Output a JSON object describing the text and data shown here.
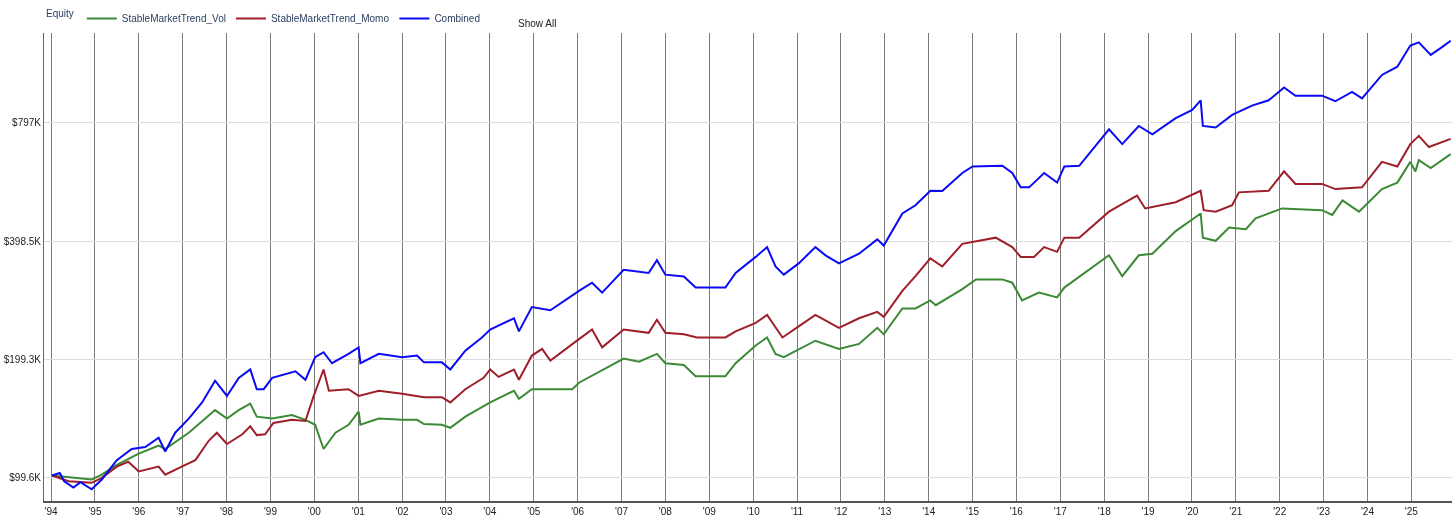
{
  "chart_data": {
    "type": "line",
    "legend_title": "Equity",
    "legend": "top left",
    "log": "y",
    "grid": true,
    "annotations": [
      "Show All"
    ],
    "xlim": [
      "1993-11-03",
      "2025-12-05"
    ],
    "xticks": [
      {
        "value": "1994-01-01",
        "label": "'94"
      },
      {
        "value": "1995-01-01",
        "label": "'95"
      },
      {
        "value": "1996-01-01",
        "label": "'96"
      },
      {
        "value": "1997-01-01",
        "label": "'97"
      },
      {
        "value": "1998-01-01",
        "label": "'98"
      },
      {
        "value": "1999-01-01",
        "label": "'99"
      },
      {
        "value": "2000-01-01",
        "label": "'00"
      },
      {
        "value": "2001-01-01",
        "label": "'01"
      },
      {
        "value": "2002-01-01",
        "label": "'02"
      },
      {
        "value": "2003-01-01",
        "label": "'03"
      },
      {
        "value": "2004-01-01",
        "label": "'04"
      },
      {
        "value": "2005-01-01",
        "label": "'05"
      },
      {
        "value": "2006-01-01",
        "label": "'06"
      },
      {
        "value": "2007-01-01",
        "label": "'07"
      },
      {
        "value": "2008-01-01",
        "label": "'08"
      },
      {
        "value": "2009-01-01",
        "label": "'09"
      },
      {
        "value": "2010-01-01",
        "label": "'10"
      },
      {
        "value": "2011-01-01",
        "label": "'11"
      },
      {
        "value": "2012-01-01",
        "label": "'12"
      },
      {
        "value": "2013-01-01",
        "label": "'13"
      },
      {
        "value": "2014-01-01",
        "label": "'14"
      },
      {
        "value": "2015-01-01",
        "label": "'15"
      },
      {
        "value": "2016-01-01",
        "label": "'16"
      },
      {
        "value": "2017-01-01",
        "label": "'17"
      },
      {
        "value": "2018-01-01",
        "label": "'18"
      },
      {
        "value": "2019-01-01",
        "label": "'19"
      },
      {
        "value": "2020-01-01",
        "label": "'20"
      },
      {
        "value": "2021-01-01",
        "label": "'21"
      },
      {
        "value": "2022-01-01",
        "label": "'22"
      },
      {
        "value": "2023-01-01",
        "label": "'23"
      },
      {
        "value": "2024-01-01",
        "label": "'24"
      },
      {
        "value": "2025-01-01",
        "label": "'25"
      }
    ],
    "ylim": [
      87000,
      1350000
    ],
    "yticks": [
      {
        "value": 99600,
        "label": "$99.6K"
      },
      {
        "value": 199300,
        "label": "$199.3K"
      },
      {
        "value": 398500,
        "label": "$398.5K"
      },
      {
        "value": 797000,
        "label": "$797K"
      }
    ],
    "series": [
      {
        "name": "StableMarketTrend_Vol",
        "color": "#3c8a35",
        "x": [
          "1994-01-08",
          "1994-12-05",
          "1995-02-27",
          "1995-07-02",
          "1996-01-01",
          "1996-06-14",
          "1996-08-08",
          "1997-02-20",
          "1997-09-27",
          "1998-01-04",
          "1998-04-12",
          "1998-07-17",
          "1998-09-09",
          "1999-01-15",
          "1999-06-29",
          "1999-10-19",
          "2000-01-08",
          "2000-03-18",
          "2000-06-25",
          "2000-10-12",
          "2001-01-04",
          "2001-01-19",
          "2001-06-21",
          "2002-01-01",
          "2002-05-05",
          "2002-07-02",
          "2002-11-28",
          "2003-02-06",
          "2003-06-11",
          "2004-01-04",
          "2004-07-20",
          "2004-08-30",
          "2004-12-16",
          "2005-11-17",
          "2006-01-12",
          "2007-01-19",
          "2007-05-27",
          "2007-10-23",
          "2008-01-01",
          "2008-06-03",
          "2008-09-09",
          "2009-05-15",
          "2009-08-08",
          "2010-01-22",
          "2010-04-27",
          "2010-07-06",
          "2010-09-13",
          "2011-06-03",
          "2011-12-16",
          "2012-05-31",
          "2012-10-30",
          "2012-12-23",
          "2013-05-27",
          "2013-09-13",
          "2014-01-15",
          "2014-03-01",
          "2014-10-08",
          "2015-01-30",
          "2015-09-06",
          "2015-11-28",
          "2016-02-17",
          "2016-07-06",
          "2016-12-05",
          "2017-02-03",
          "2018-02-10",
          "2018-05-31",
          "2018-10-16",
          "2019-02-06",
          "2019-08-19",
          "2020-03-14",
          "2020-04-01",
          "2020-07-17",
          "2020-11-06",
          "2021-03-25",
          "2021-06-14",
          "2022-01-22",
          "2022-12-19",
          "2023-03-14",
          "2023-06-07",
          "2023-10-23",
          "2024-05-01",
          "2024-09-06",
          "2024-12-23",
          "2025-02-03",
          "2025-03-04",
          "2025-06-11",
          "2025-11-24"
        ],
        "values": [
          101000,
          98700,
          101500,
          107500,
          114800,
          120300,
          118000,
          129800,
          148200,
          141000,
          148200,
          153900,
          142600,
          141000,
          144000,
          140000,
          136000,
          118000,
          129800,
          136000,
          146800,
          136000,
          141000,
          140000,
          140000,
          136600,
          136000,
          133600,
          142600,
          155000,
          166000,
          158300,
          167500,
          167500,
          174000,
          200500,
          196700,
          206000,
          195000,
          193000,
          180800,
          180800,
          195000,
          216400,
          226800,
          206000,
          202000,
          222500,
          212000,
          218400,
          240000,
          231000,
          268900,
          268900,
          281700,
          274000,
          301000,
          318700,
          318700,
          312600,
          281700,
          295000,
          286800,
          303800,
          367000,
          324700,
          367000,
          370500,
          423000,
          469000,
          407000,
          399600,
          431700,
          427600,
          456000,
          483000,
          478000,
          465000,
          506000,
          474000,
          541000,
          562000,
          634500,
          600000,
          641000,
          612000,
          664000
        ]
      },
      {
        "name": "StableMarketTrend_Momo",
        "color": "#9e1f2a",
        "x": [
          "1994-01-08",
          "1994-05-27",
          "1994-12-05",
          "1995-02-27",
          "1995-07-02",
          "1995-10-05",
          "1996-01-01",
          "1996-06-14",
          "1996-08-08",
          "1996-12-23",
          "1997-04-16",
          "1997-08-05",
          "1997-10-12",
          "1998-01-04",
          "1998-05-12",
          "1998-07-17",
          "1998-09-09",
          "1998-11-17",
          "1999-01-26",
          "1999-06-29",
          "1999-10-19",
          "1999-12-27",
          "2000-03-18",
          "2000-05-01",
          "2000-10-12",
          "2001-01-04",
          "2001-06-21",
          "2002-01-01",
          "2002-07-02",
          "2002-11-28",
          "2003-02-06",
          "2003-06-11",
          "2003-11-10",
          "2004-01-04",
          "2004-03-14",
          "2004-07-20",
          "2004-08-30",
          "2004-12-16",
          "2005-03-11",
          "2005-05-19",
          "2006-01-12",
          "2006-05-01",
          "2006-07-24",
          "2007-01-19",
          "2007-08-15",
          "2007-10-23",
          "2008-01-01",
          "2008-06-03",
          "2008-09-20",
          "2009-05-15",
          "2009-08-08",
          "2010-01-22",
          "2010-04-27",
          "2010-09-02",
          "2011-01-15",
          "2011-06-03",
          "2011-12-16",
          "2012-05-31",
          "2012-10-30",
          "2012-12-23",
          "2013-05-27",
          "2013-09-13",
          "2014-01-15",
          "2014-04-24",
          "2014-10-08",
          "2015-02-24",
          "2015-07-13",
          "2015-11-28",
          "2016-02-06",
          "2016-05-27",
          "2016-08-19",
          "2016-12-05",
          "2017-02-03",
          "2017-06-07",
          "2018-02-10",
          "2018-10-01",
          "2018-12-08",
          "2019-08-19",
          "2020-03-14",
          "2020-04-08",
          "2020-07-17",
          "2020-12-01",
          "2021-01-26",
          "2021-10-01",
          "2022-02-06",
          "2022-05-12",
          "2022-12-19",
          "2023-04-09",
          "2023-11-17",
          "2024-05-01",
          "2024-09-06",
          "2024-12-23",
          "2025-03-04",
          "2025-05-27",
          "2025-11-24"
        ],
        "values": [
          101000,
          97700,
          96800,
          99600,
          106400,
          109500,
          103400,
          106400,
          101500,
          106400,
          110500,
          123800,
          129800,
          121500,
          128600,
          134700,
          128000,
          128600,
          137400,
          140000,
          139000,
          161000,
          188000,
          166000,
          167500,
          161000,
          166000,
          163000,
          159800,
          159800,
          155000,
          167500,
          179000,
          188000,
          180000,
          188000,
          177000,
          204000,
          212000,
          198000,
          224600,
          237600,
          214000,
          237600,
          233000,
          251600,
          233000,
          231000,
          226800,
          226800,
          235000,
          247000,
          258800,
          226800,
          242000,
          258800,
          240000,
          253800,
          263500,
          256000,
          298000,
          324700,
          360600,
          343800,
          392600,
          399600,
          407000,
          385000,
          363600,
          363600,
          385000,
          374500,
          407000,
          407000,
          474000,
          521000,
          483000,
          501000,
          535600,
          478000,
          474000,
          492000,
          530700,
          535600,
          600000,
          557600,
          557600,
          541000,
          546500,
          634500,
          617500,
          704000,
          739000,
          692000,
          726000
        ]
      },
      {
        "name": "Combined",
        "color": "#0a0af5",
        "x": [
          "1994-01-08",
          "1994-03-14",
          "1994-04-20",
          "1994-07-06",
          "1994-09-02",
          "1994-12-05",
          "1995-02-27",
          "1995-07-02",
          "1995-11-03",
          "1996-02-24",
          "1996-06-14",
          "1996-08-08",
          "1996-10-30",
          "1997-02-20",
          "1997-06-11",
          "1997-09-27",
          "1998-01-04",
          "1998-04-12",
          "1998-07-17",
          "1998-09-09",
          "1998-11-06",
          "1999-01-15",
          "1999-07-28",
          "1999-10-19",
          "2000-01-08",
          "2000-03-18",
          "2000-05-27",
          "2000-10-12",
          "2001-01-04",
          "2001-01-19",
          "2001-06-21",
          "2002-01-01",
          "2002-05-05",
          "2002-07-02",
          "2002-11-28",
          "2003-02-06",
          "2003-06-11",
          "2003-10-27",
          "2004-01-04",
          "2004-07-20",
          "2004-08-30",
          "2004-12-16",
          "2005-05-19",
          "2006-01-12",
          "2006-05-01",
          "2006-07-24",
          "2007-01-19",
          "2007-08-15",
          "2007-10-23",
          "2008-01-01",
          "2008-06-03",
          "2008-09-09",
          "2009-05-15",
          "2009-08-08",
          "2010-01-22",
          "2010-04-27",
          "2010-07-06",
          "2010-09-13",
          "2011-01-15",
          "2011-06-03",
          "2011-08-26",
          "2011-12-16",
          "2012-05-31",
          "2012-10-30",
          "2012-12-23",
          "2013-05-27",
          "2013-09-13",
          "2014-01-15",
          "2014-04-24",
          "2014-10-08",
          "2015-01-01",
          "2015-09-06",
          "2015-11-28",
          "2016-02-06",
          "2016-04-16",
          "2016-08-19",
          "2016-12-05",
          "2017-02-03",
          "2017-06-07",
          "2018-02-10",
          "2018-05-31",
          "2018-10-16",
          "2019-02-06",
          "2019-08-19",
          "2020-01-04",
          "2020-03-14",
          "2020-04-01",
          "2020-07-17",
          "2020-12-01",
          "2021-05-15",
          "2021-10-01",
          "2022-02-06",
          "2022-05-12",
          "2022-12-19",
          "2023-04-09",
          "2023-08-26",
          "2023-11-17",
          "2024-05-01",
          "2024-09-06",
          "2024-12-23",
          "2025-03-04",
          "2025-06-11",
          "2025-09-16",
          "2025-11-24"
        ],
        "values": [
          101000,
          102500,
          97700,
          94100,
          97100,
          93200,
          98700,
          110500,
          118000,
          119400,
          126000,
          116300,
          129800,
          141000,
          155000,
          176000,
          161000,
          179000,
          188000,
          167500,
          167500,
          179000,
          186000,
          177000,
          202000,
          208000,
          195000,
          206000,
          214000,
          195000,
          206000,
          202000,
          204000,
          196000,
          196000,
          188000,
          210000,
          226800,
          237600,
          253800,
          235000,
          271000,
          266000,
          298000,
          312600,
          295000,
          337000,
          330800,
          356600,
          327700,
          324000,
          303800,
          303800,
          330800,
          363600,
          385000,
          343800,
          327700,
          350000,
          385000,
          367000,
          350000,
          370500,
          403000,
          388600,
          469000,
          492000,
          535600,
          535000,
          594600,
          617500,
          620000,
          594600,
          546500,
          546500,
          594600,
          562000,
          617500,
          620000,
          768000,
          704000,
          783000,
          746000,
          820000,
          860000,
          910000,
          783000,
          776000,
          835600,
          882500,
          910000,
          981000,
          935000,
          935000,
          905000,
          956000,
          920000,
          1056000,
          1108000,
          1254000,
          1278000,
          1188000,
          1245000,
          1290000
        ]
      }
    ]
  }
}
